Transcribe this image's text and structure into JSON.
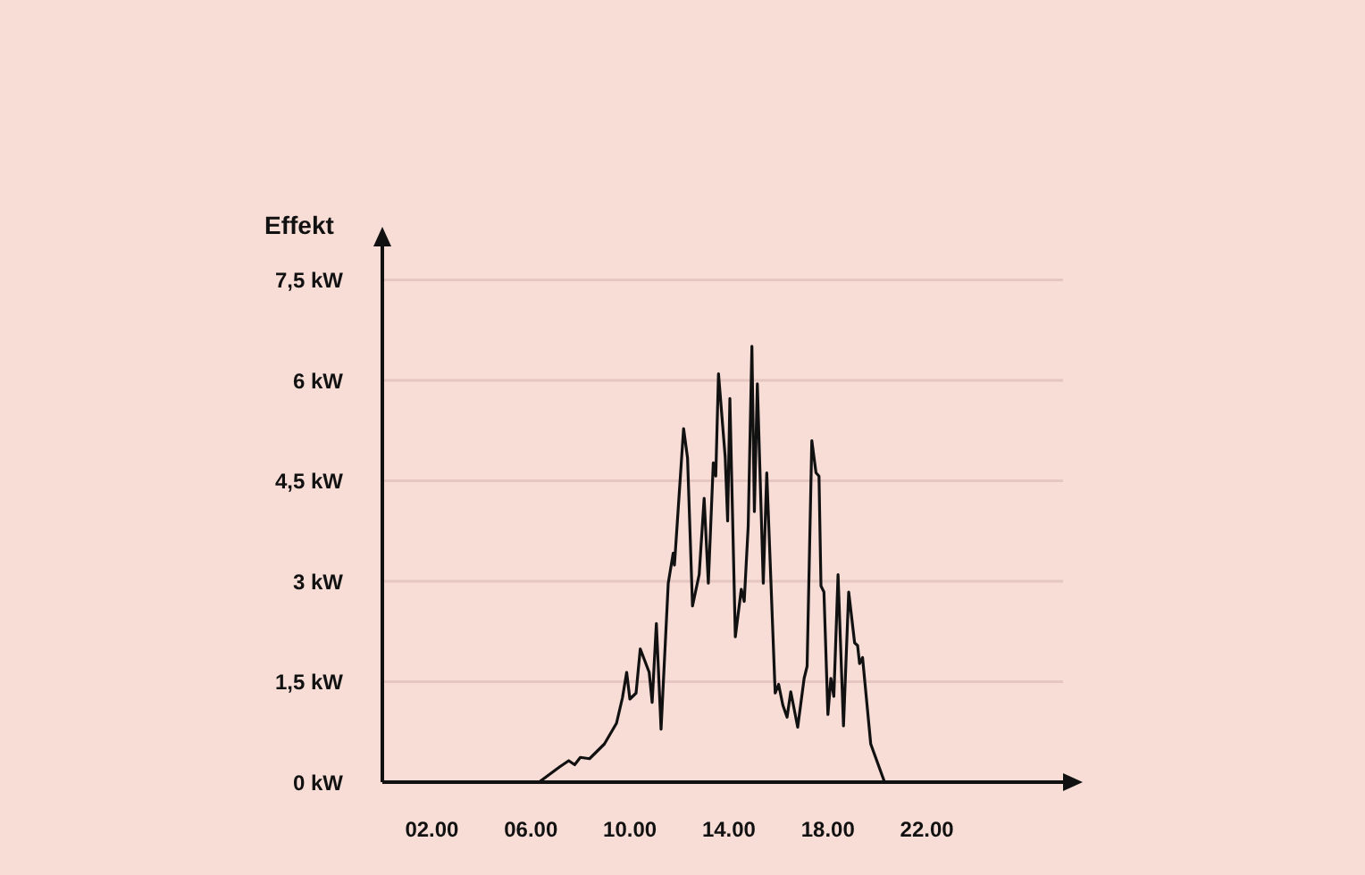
{
  "chart_data": {
    "type": "line",
    "ylabel": "Effekt",
    "xlim": [
      0,
      27.5
    ],
    "ylim": [
      0,
      8
    ],
    "xticks": [
      {
        "value": 2,
        "label": "02.00"
      },
      {
        "value": 6,
        "label": "06.00"
      },
      {
        "value": 10,
        "label": "10.00"
      },
      {
        "value": 14,
        "label": "14.00"
      },
      {
        "value": 18,
        "label": "18.00"
      },
      {
        "value": 22,
        "label": "22.00"
      }
    ],
    "yticks": [
      {
        "value": 0,
        "label": "0 kW"
      },
      {
        "value": 1.5,
        "label": "1,5 kW"
      },
      {
        "value": 3,
        "label": "3 kW"
      },
      {
        "value": 4.5,
        "label": "4,5 kW"
      },
      {
        "value": 6,
        "label": "6 kW"
      },
      {
        "value": 7.5,
        "label": "7,5 kW"
      }
    ],
    "grid": "y",
    "series": [
      {
        "color": "#111111",
        "x": [
          6.33,
          7.17,
          7.53,
          7.77,
          8.0,
          8.37,
          8.97,
          9.46,
          9.7,
          9.87,
          10.0,
          10.25,
          10.42,
          10.78,
          10.9,
          11.07,
          11.26,
          11.55,
          11.75,
          11.8,
          12.17,
          12.33,
          12.53,
          12.8,
          13.0,
          13.17,
          13.37,
          13.47,
          13.58,
          13.85,
          13.95,
          14.04,
          14.26,
          14.5,
          14.62,
          14.78,
          14.93,
          15.03,
          15.15,
          15.39,
          15.53,
          15.87,
          16.01,
          16.18,
          16.35,
          16.5,
          16.78,
          17.04,
          17.16,
          17.35,
          17.52,
          17.64,
          17.72,
          17.84,
          18.0,
          18.12,
          18.24,
          18.41,
          18.63,
          18.84,
          19.08,
          19.2,
          19.28,
          19.4,
          19.73,
          20.29
        ],
        "values": [
          0,
          0.23,
          0.32,
          0.26,
          0.37,
          0.35,
          0.57,
          0.88,
          1.26,
          1.64,
          1.24,
          1.33,
          1.99,
          1.64,
          1.19,
          2.37,
          0.79,
          2.97,
          3.42,
          3.24,
          5.28,
          4.84,
          2.63,
          3.1,
          4.24,
          2.97,
          4.77,
          4.57,
          6.1,
          4.86,
          3.9,
          5.73,
          2.17,
          2.88,
          2.7,
          3.82,
          6.51,
          4.04,
          5.95,
          2.97,
          4.62,
          1.33,
          1.46,
          1.15,
          0.97,
          1.35,
          0.82,
          1.55,
          1.73,
          5.1,
          4.62,
          4.57,
          2.93,
          2.84,
          1.01,
          1.55,
          1.28,
          3.1,
          0.84,
          2.84,
          2.08,
          2.04,
          1.77,
          1.86,
          0.57,
          0
        ]
      }
    ]
  }
}
